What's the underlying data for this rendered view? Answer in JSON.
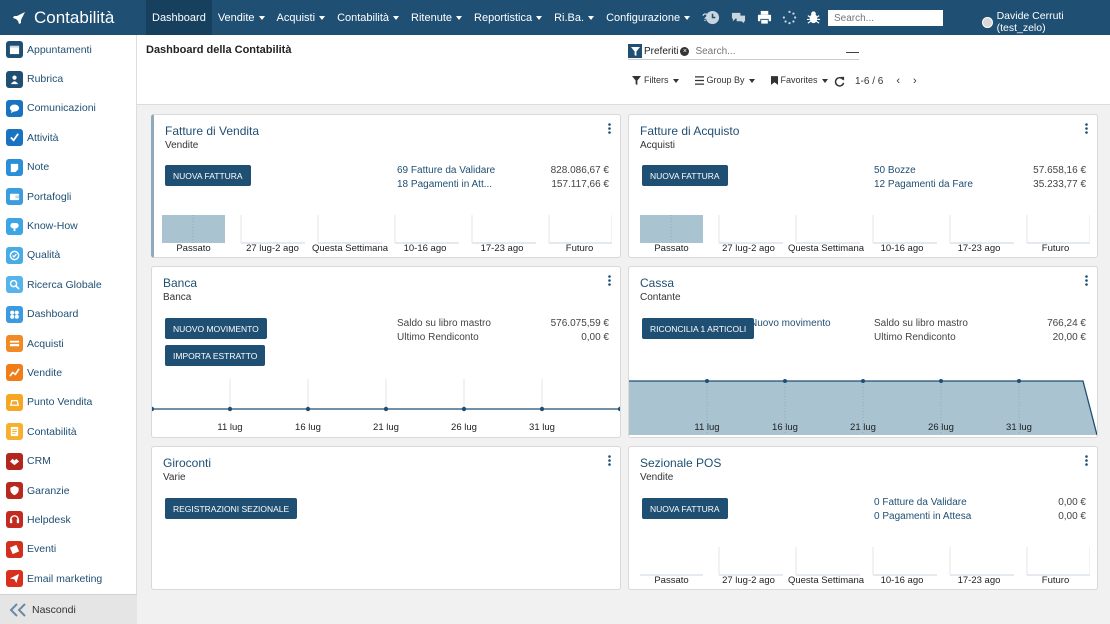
{
  "app": {
    "title": "Contabilità"
  },
  "nav": {
    "items": [
      {
        "label": "Dashboard",
        "active": true,
        "dropdown": false
      },
      {
        "label": "Vendite",
        "dropdown": true
      },
      {
        "label": "Acquisti",
        "dropdown": true
      },
      {
        "label": "Contabilità",
        "dropdown": true
      },
      {
        "label": "Ritenute",
        "dropdown": true
      },
      {
        "label": "Reportistica",
        "dropdown": true
      },
      {
        "label": "Ri.Ba.",
        "dropdown": true
      },
      {
        "label": "Configurazione",
        "dropdown": true
      },
      {
        "label": "?",
        "dropdown": false
      }
    ],
    "icons": [
      "clock-icon",
      "chat-icon",
      "print-icon",
      "spinner-icon",
      "bug-icon"
    ],
    "search_placeholder": "Search...",
    "user": "Davide Cerruti (test_zelo)"
  },
  "sidebar": {
    "items": [
      {
        "label": "Appuntamenti",
        "color": "#1f4f73",
        "icon": "calendar-icon"
      },
      {
        "label": "Rubrica",
        "color": "#1f4f73",
        "icon": "contacts-icon"
      },
      {
        "label": "Comunicazioni",
        "color": "#1a73c1",
        "icon": "chat-bubble-icon"
      },
      {
        "label": "Attività",
        "color": "#1a73c1",
        "icon": "checkbox-icon"
      },
      {
        "label": "Note",
        "color": "#2a8fd8",
        "icon": "note-icon"
      },
      {
        "label": "Portafogli",
        "color": "#3a9de0",
        "icon": "wallet-icon"
      },
      {
        "label": "Know-How",
        "color": "#3da5e3",
        "icon": "brain-icon"
      },
      {
        "label": "Qualità",
        "color": "#47ace6",
        "icon": "quality-icon"
      },
      {
        "label": "Ricerca Globale",
        "color": "#55b4ea",
        "icon": "search-icon"
      },
      {
        "label": "Dashboard",
        "color": "#3c9be0",
        "icon": "dashboard-icon"
      },
      {
        "label": "Acquisti",
        "color": "#f08a24",
        "icon": "purchase-icon"
      },
      {
        "label": "Vendite",
        "color": "#f07d18",
        "icon": "sales-chart-icon"
      },
      {
        "label": "Punto Vendita",
        "color": "#f5a623",
        "icon": "pos-icon"
      },
      {
        "label": "Contabilità",
        "color": "#f6b02e",
        "icon": "accounting-icon"
      },
      {
        "label": "CRM",
        "color": "#b3261e",
        "icon": "handshake-icon"
      },
      {
        "label": "Garanzie",
        "color": "#b8281f",
        "icon": "shield-icon"
      },
      {
        "label": "Helpdesk",
        "color": "#c22c20",
        "icon": "headset-icon"
      },
      {
        "label": "Eventi",
        "color": "#d1301f",
        "icon": "ticket-icon"
      },
      {
        "label": "Email marketing",
        "color": "#d92f1f",
        "icon": "paper-plane-icon"
      }
    ],
    "hide_label": "Nascondi"
  },
  "control_panel": {
    "title": "Dashboard della Contabilità",
    "facet": "Preferiti",
    "search_placeholder": "Search...",
    "filters": "Filters",
    "group_by": "Group By",
    "favorites": "Favorites",
    "pager": "1-6 / 6"
  },
  "cards": {
    "vendita": {
      "title": "Fatture di Vendita",
      "subtitle": "Vendite",
      "button": "NUOVA FATTURA",
      "rows": [
        {
          "label": "69 Fatture da Validare",
          "amount": "828.086,67 €"
        },
        {
          "label": "18 Pagamenti in Att...",
          "amount": "157.117,66 €"
        }
      ],
      "chart_labels": [
        "Passato",
        "27 lug-2 ago",
        "Questa Settimana",
        "10-16 ago",
        "17-23 ago",
        "Futuro"
      ]
    },
    "acquisto": {
      "title": "Fatture di Acquisto",
      "subtitle": "Acquisti",
      "button": "NUOVA FATTURA",
      "rows": [
        {
          "label": "50 Bozze",
          "amount": "57.658,16 €"
        },
        {
          "label": "12 Pagamenti da Fare",
          "amount": "35.233,77 €"
        }
      ],
      "chart_labels": [
        "Passato",
        "27 lug-2 ago",
        "Questa Settimana",
        "10-16 ago",
        "17-23 ago",
        "Futuro"
      ]
    },
    "banca": {
      "title": "Banca",
      "subtitle": "Banca",
      "button1": "NUOVO MOVIMENTO",
      "button2": "IMPORTA ESTRATTO",
      "rows": [
        {
          "label": "Saldo su libro mastro",
          "amount": "576.075,59 €"
        },
        {
          "label": "Ultimo Rendiconto",
          "amount": "0,00 €"
        }
      ],
      "chart_labels": [
        "11 lug",
        "16 lug",
        "21 lug",
        "26 lug",
        "31 lug"
      ]
    },
    "cassa": {
      "title": "Cassa",
      "subtitle": "Contante",
      "button": "RICONCILIA 1 ARTICOLI",
      "link": "Nuovo movimento",
      "rows": [
        {
          "label": "Saldo su libro mastro",
          "amount": "766,24 €"
        },
        {
          "label": "Ultimo Rendiconto",
          "amount": "20,00 €"
        }
      ],
      "chart_labels": [
        "11 lug",
        "16 lug",
        "21 lug",
        "26 lug",
        "31 lug"
      ]
    },
    "giroconti": {
      "title": "Giroconti",
      "subtitle": "Varie",
      "button": "REGISTRAZIONI SEZIONALE"
    },
    "pos": {
      "title": "Sezionale POS",
      "subtitle": "Vendite",
      "button": "NUOVA FATTURA",
      "rows": [
        {
          "label": "0 Fatture da Validare",
          "amount": "0,00 €"
        },
        {
          "label": "0 Pagamenti in Attesa",
          "amount": "0,00 €"
        }
      ],
      "chart_labels": [
        "Passato",
        "27 lug-2 ago",
        "Questa Settimana",
        "10-16 ago",
        "17-23 ago",
        "Futuro"
      ]
    }
  },
  "colors": {
    "primary": "#1f4f73",
    "chart_fill": "#a9c3d1",
    "chart_line": "#1f4f73"
  }
}
